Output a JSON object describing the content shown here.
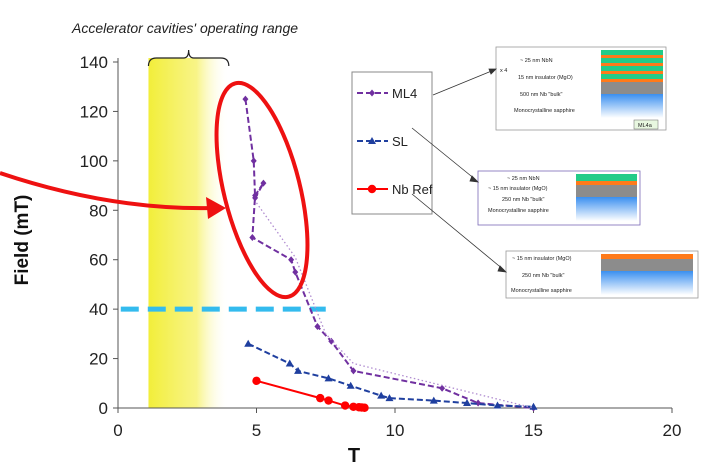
{
  "chart_data": {
    "type": "line",
    "title": "",
    "xlabel": "T",
    "ylabel": "Field (mT)",
    "xlim": [
      0,
      20
    ],
    "ylim": [
      0,
      140
    ],
    "xticks": [
      0,
      5,
      10,
      15,
      20
    ],
    "yticks": [
      0,
      20,
      40,
      60,
      80,
      100,
      120,
      140
    ],
    "grid": false,
    "legend": "top-center",
    "operating_range_label": "Accelerator cavities' operating range",
    "operating_range": [
      1.1,
      4.0
    ],
    "dashed_level": 40,
    "series": [
      {
        "name": "ML4",
        "color": "#7030a0",
        "marker": "diamond",
        "line": "dash",
        "x": [
          4.6,
          4.9,
          4.95,
          5.25,
          4.95,
          4.85,
          6.25,
          6.4,
          7.2,
          7.7,
          8.5,
          11.7,
          13.0,
          15.0
        ],
        "y": [
          125,
          100,
          85,
          91,
          86,
          69,
          60,
          55,
          33,
          27,
          15,
          8,
          2,
          0
        ]
      },
      {
        "name": "SL",
        "color": "#1f3f9f",
        "marker": "triangle",
        "line": "dash",
        "x": [
          4.7,
          6.2,
          6.5,
          7.6,
          8.4,
          9.5,
          9.8,
          11.4,
          12.6,
          13.7,
          15.0
        ],
        "y": [
          26,
          18,
          15,
          12,
          9,
          5,
          4,
          3,
          2,
          1,
          0.5
        ]
      },
      {
        "name": "Nb Ref",
        "color": "#ff0000",
        "marker": "circle",
        "line": "solid",
        "x": [
          5.0,
          7.3,
          7.6,
          8.2,
          8.5,
          8.7,
          8.8,
          8.9
        ],
        "y": [
          11,
          4,
          3,
          1,
          0.5,
          0.3,
          0.2,
          0.1
        ]
      },
      {
        "name": "",
        "color": "#b08cd0",
        "marker": "none",
        "line": "dot",
        "x": [
          5.0,
          6.4,
          7.5,
          8.5,
          15.0
        ],
        "y": [
          83,
          61,
          30,
          18,
          0
        ]
      }
    ]
  },
  "insets": {
    "ml4": {
      "lines": [
        "~ 25 nm NbN",
        "15 nm insulator (MgO)",
        "500 nm Nb \"bulk\"",
        "Monocrystalline sapphire"
      ],
      "repeat": "x 4",
      "tag": "ML4a"
    },
    "sl": {
      "lines": [
        "~ 25 nm NbN",
        "~ 15 nm insulator (MgO)",
        "250 nm Nb \"bulk\"",
        "Monocrystalline sapphire"
      ]
    },
    "nb": {
      "lines": [
        "~ 15 nm insulator (MgO)",
        "250 nm Nb \"bulk\"",
        "Monocrystalline sapphire"
      ]
    }
  },
  "colors": {
    "highlight": "#ee1111",
    "dashed_level": "#33bbee",
    "band": "#f2ee3a",
    "nbn": "#22cc88",
    "mgo": "#ff7a1a",
    "nb": "#8c8c8c",
    "sapphire": "#3a8ff0"
  }
}
